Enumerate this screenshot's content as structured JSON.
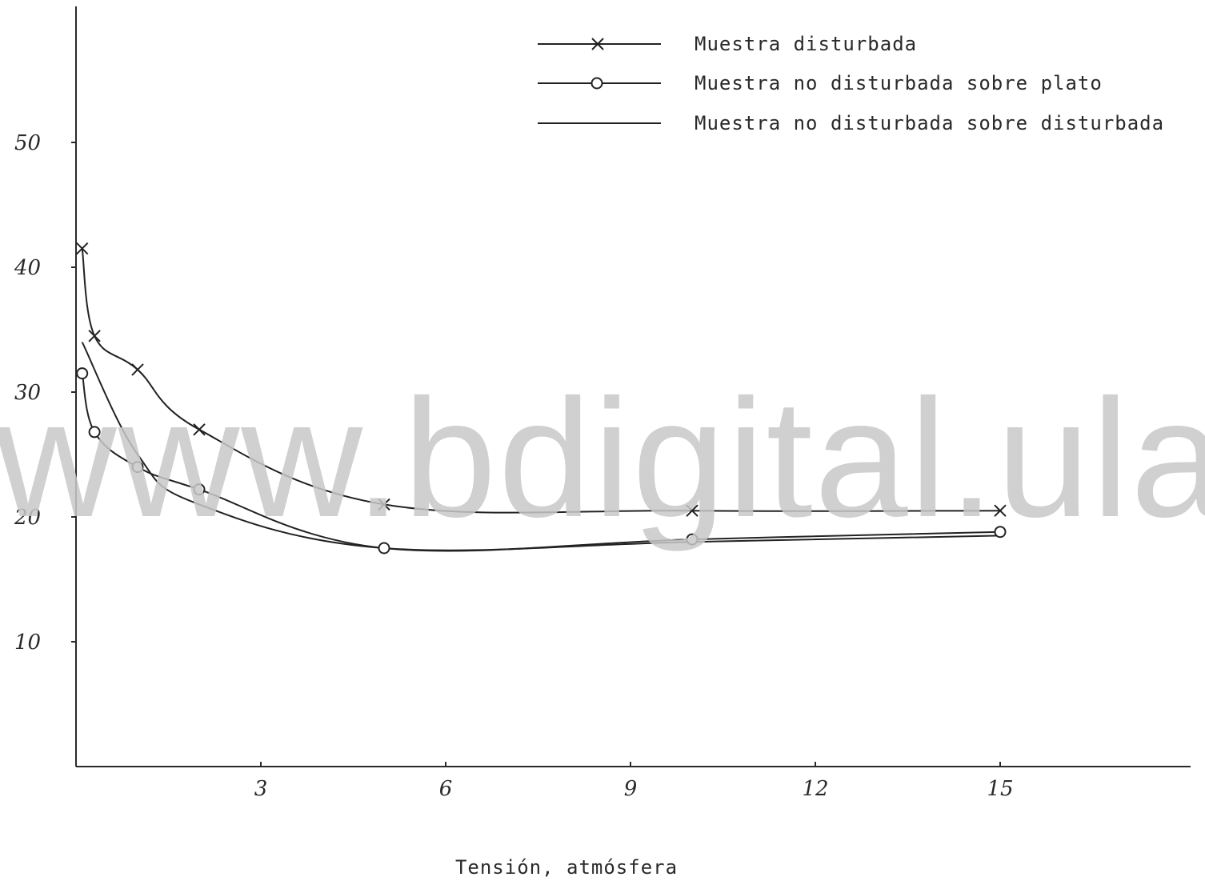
{
  "watermark": "www.bdigital.ula.ve",
  "chart_data": {
    "type": "line",
    "title": "",
    "xlabel": "Tensión, atmósfera",
    "ylabel": "",
    "xlim": [
      0,
      18
    ],
    "ylim": [
      0,
      55
    ],
    "xticks": [
      3,
      6,
      9,
      12,
      15
    ],
    "xtick_labels": [
      "3",
      "6",
      "9",
      "12",
      "15"
    ],
    "yticks": [
      10,
      20,
      30,
      40,
      50
    ],
    "ytick_labels": [
      "10",
      "20",
      "30",
      "40",
      "50"
    ],
    "grid": false,
    "legend_position": "top-right",
    "series": [
      {
        "name": "Muestra disturbada",
        "marker": "x",
        "color": "#222222",
        "x": [
          0.1,
          0.3,
          1,
          2,
          5,
          10,
          15
        ],
        "y": [
          41.5,
          34.5,
          31.8,
          27,
          21,
          20.5,
          20.5
        ]
      },
      {
        "name": "Muestra no disturbada sobre plato",
        "marker": "o",
        "color": "#222222",
        "x": [
          0.1,
          0.3,
          1,
          2,
          5,
          10,
          15
        ],
        "y": [
          31.5,
          26.8,
          24,
          22.2,
          17.5,
          18.2,
          18.8
        ]
      },
      {
        "name": "Muestra no disturbada sobre  disturbada",
        "marker": "none",
        "color": "#222222",
        "x": [
          0.1,
          1,
          2,
          5,
          10,
          15
        ],
        "y": [
          34,
          25,
          21,
          17.5,
          18,
          18.5
        ]
      }
    ]
  }
}
